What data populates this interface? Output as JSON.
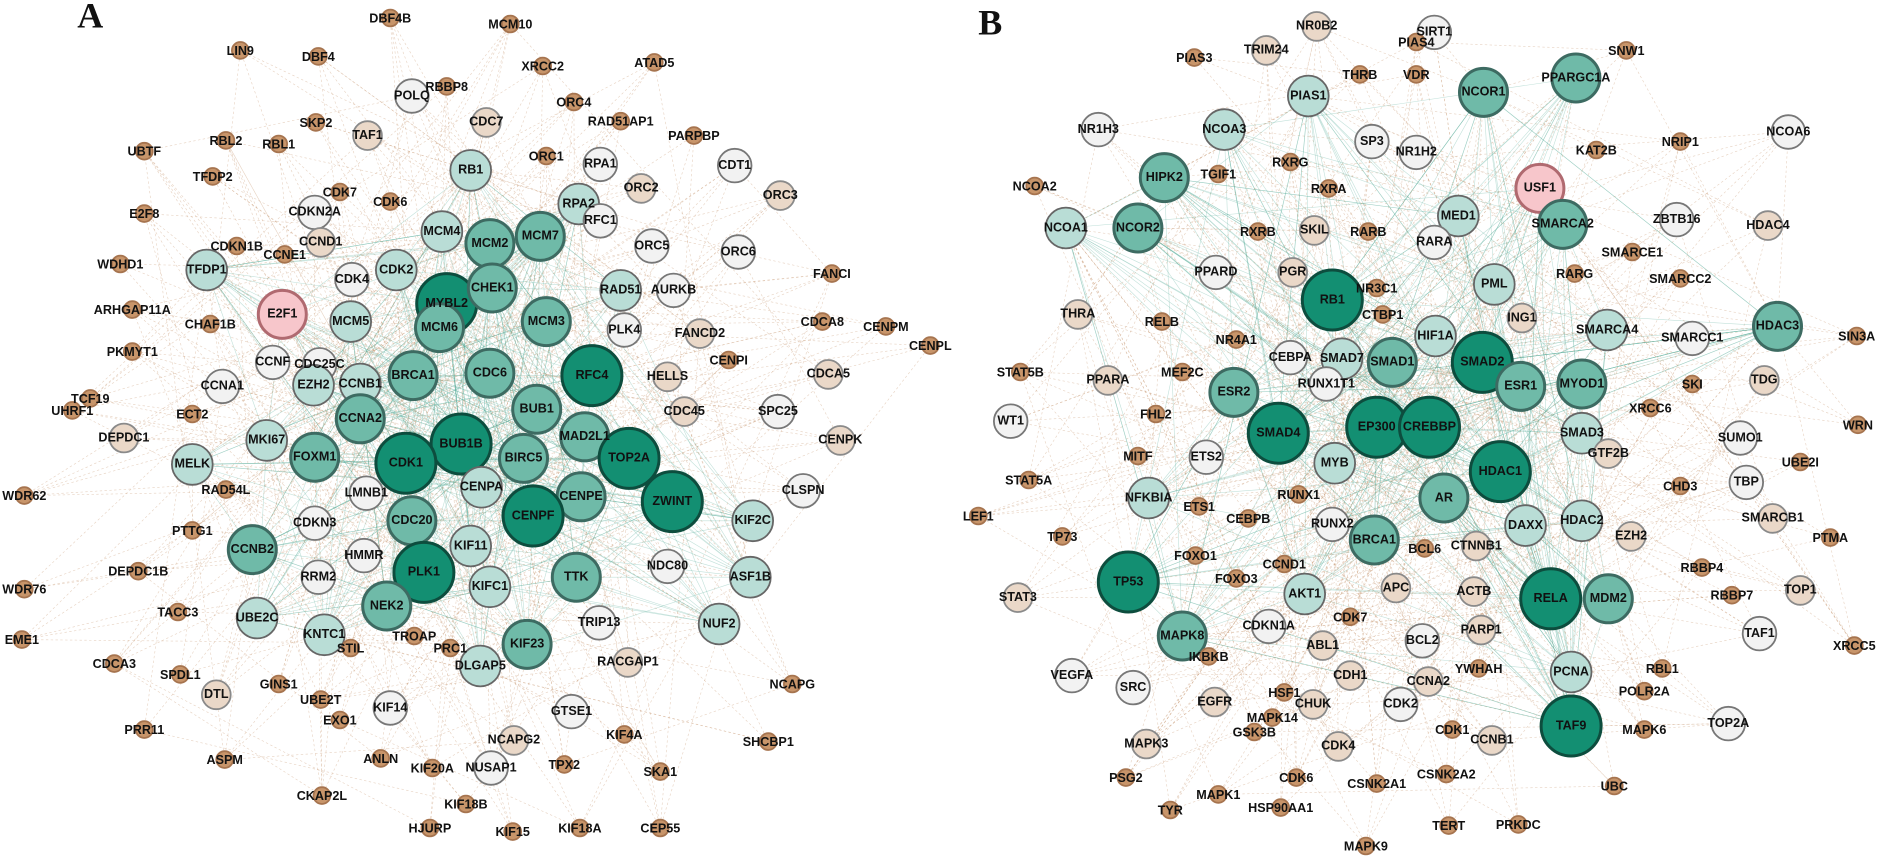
{
  "panels": [
    {
      "label": "A",
      "nodes": [
        "DBF4B",
        "MCM10",
        "LIN9",
        "DBF4",
        "XRCC2",
        "ATAD5",
        "RBBP8",
        "POLQ",
        "ORC4",
        "SKP2",
        "TAF1",
        "CDC7",
        "RAD51AP1",
        "PARPBP",
        "RBL2",
        "RBL1",
        "UBTF",
        "TFDP2",
        "ORC1",
        "RB1",
        "RPA1",
        "CDT1",
        "ORC2",
        "ORC3",
        "CDK7",
        "CDK6",
        "CDKN2A",
        "RPA2",
        "RFC1",
        "E2F8",
        "CCND1",
        "CDKN1B",
        "CCNE1",
        "MCM4",
        "MCM2",
        "MCM7",
        "ORC5",
        "ORC6",
        "WDHD1",
        "TFDP1",
        "CDK2",
        "CDK4",
        "MYBL2",
        "CHEK1",
        "MCM3",
        "RAD51",
        "AURKB",
        "FANCI",
        "ARHGAP11A",
        "E2F1",
        "CHAF1B",
        "MCM5",
        "MCM6",
        "PLK4",
        "FANCD2",
        "CDCA8",
        "CENPM",
        "CENPL",
        "PKMYT1",
        "CCNF",
        "CDC25C",
        "BRCA1",
        "CDC6",
        "RFC4",
        "CENPI",
        "HELLS",
        "CDCA5",
        "CCNB1",
        "CCNA1",
        "TCF19",
        "UHRF1",
        "ECT2",
        "EZH2",
        "CCNA2",
        "BUB1",
        "SPC25",
        "CDC45",
        "MAD2L1",
        "BUB1B",
        "DEPDC1",
        "MKI67",
        "FOXM1",
        "MELK",
        "CDK1",
        "BIRC5",
        "TOP2A",
        "CENPK",
        "LMNB1",
        "CENPA",
        "RAD54L",
        "WDR62",
        "CENPE",
        "CLSPN",
        "ZWINT",
        "CENPF",
        "KIF2C",
        "CDKN3",
        "CDC20",
        "HMMR",
        "PTTG1",
        "CCNB2",
        "NDC80",
        "KIF11",
        "DEPDC1B",
        "RRM2",
        "PLK1",
        "TTK",
        "ASF1B",
        "TRIP13",
        "WDR76",
        "KIFC1",
        "NEK2",
        "TACC3",
        "UBE2C",
        "EME1",
        "KNTC1",
        "STIL",
        "TROAP",
        "PRC1",
        "KIF23",
        "NUF2",
        "RACGAP1",
        "CDCA3",
        "DLGAP5",
        "NCAPG",
        "DTL",
        "SPDL1",
        "GINS1",
        "UBE2T",
        "EXO1",
        "GTSE1",
        "KIF14",
        "PRR11",
        "KIF4A",
        "SHCBP1",
        "NCAPG2",
        "ASPM",
        "ANLN",
        "KIF20A",
        "NUSAP1",
        "TPX2",
        "SKA1",
        "CKAP2L",
        "KIF18B",
        "HJURP",
        "KIF15",
        "KIF18A",
        "CEP55"
      ]
    },
    {
      "label": "B",
      "nodes": [
        "NR0B2",
        "PIAS3",
        "TRIM24",
        "SIRT1",
        "PIAS4",
        "SNW1",
        "THRB",
        "VDR",
        "PIAS1",
        "NCOR1",
        "PPARGC1A",
        "NR1H3",
        "NCOA3",
        "SP3",
        "NR1H2",
        "KAT2B",
        "NRIP1",
        "NCOA6",
        "TGIF1",
        "RXRG",
        "HIPK2",
        "NCOA2",
        "USF1",
        "RXRA",
        "NCOA1",
        "NCOR2",
        "RXRB",
        "SKIL",
        "MED1",
        "SMARCA2",
        "ZBTB16",
        "HDAC4",
        "SMARCE1",
        "RARB",
        "RARA",
        "PPARD",
        "PGR",
        "RARG",
        "SMARCC2",
        "NR3C1",
        "PML",
        "RB1",
        "THRA",
        "CTBP1",
        "ING1",
        "RELB",
        "NR4A1",
        "HIF1A",
        "SMARCA4",
        "SMARCC1",
        "HDAC3",
        "SIN3A",
        "STAT5B",
        "MEF2C",
        "CEBPA",
        "SMAD7",
        "SMAD1",
        "SMAD2",
        "PPARA",
        "SKI",
        "TDG",
        "ESR2",
        "RUNX1T1",
        "FHL2",
        "ESR1",
        "MYOD1",
        "WT1",
        "SMAD4",
        "EP300",
        "CREBBP",
        "SMAD3",
        "XRCC6",
        "SUMO1",
        "WRN",
        "MITF",
        "ETS2",
        "MYB",
        "HDAC1",
        "GTF2B",
        "CHD3",
        "TBP",
        "UBE2I",
        "STAT5A",
        "NFKBIA",
        "ETS1",
        "RUNX1",
        "AR",
        "DAXX",
        "HDAC2",
        "LEF1",
        "SMARCB1",
        "PTMA",
        "CEBPB",
        "RUNX2",
        "TP73",
        "FOXO1",
        "CCND1",
        "BRCA1",
        "BCL6",
        "CTNNB1",
        "EZH2",
        "RBBP4",
        "TP53",
        "FOXO3",
        "APC",
        "ACTB",
        "STAT3",
        "AKT1",
        "RELA",
        "MDM2",
        "RBBP7",
        "TOP1",
        "CDK7",
        "PARP1",
        "MAPK8",
        "CDKN1A",
        "TAF1",
        "XRCC5",
        "IKBKB",
        "ABL1",
        "BCL2",
        "VEGFA",
        "SRC",
        "HSF1",
        "CDH1",
        "CCNA2",
        "YWHAH",
        "PCNA",
        "RBL1",
        "POLR2A",
        "EGFR",
        "CHUK",
        "CDK2",
        "MAPK14",
        "GSK3B",
        "TAF9",
        "MAPK6",
        "TOP2A",
        "MAPK3",
        "CDK4",
        "CDK1",
        "CCNB1",
        "PSG2",
        "CDK6",
        "CSNK2A1",
        "CSNK2A2",
        "UBC",
        "MAPK1",
        "TYR",
        "HSP90AA1",
        "TERT",
        "PRKDC",
        "MAPK9"
      ]
    }
  ]
}
